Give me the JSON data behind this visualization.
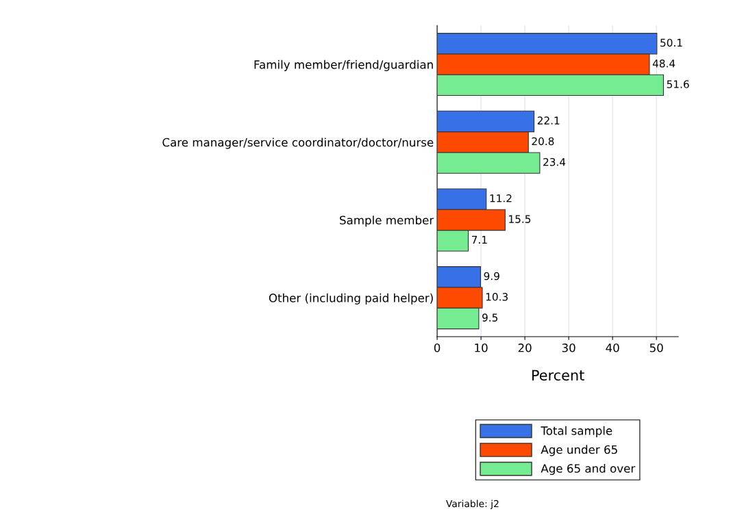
{
  "chart_data": {
    "type": "bar",
    "orientation": "horizontal",
    "categories": [
      "Family member/friend/guardian",
      "Care manager/service coordinator/doctor/nurse",
      "Sample member",
      "Other (including paid helper)"
    ],
    "series": [
      {
        "name": "Total sample",
        "color": "#3771e8",
        "values": [
          50.1,
          22.1,
          11.2,
          9.9
        ]
      },
      {
        "name": "Age under 65",
        "color": "#fd4a00",
        "values": [
          48.4,
          20.8,
          15.5,
          10.3
        ]
      },
      {
        "name": "Age 65 and over",
        "color": "#75ec91",
        "values": [
          51.6,
          23.4,
          7.1,
          9.5
        ]
      }
    ],
    "xlabel": "Percent",
    "xlim": [
      0,
      55
    ],
    "xticks": [
      0,
      10,
      20,
      30,
      40,
      50
    ],
    "grid": "x",
    "legend": "bottom",
    "data_labels": true,
    "annotations": [
      "Variable: j2"
    ]
  }
}
